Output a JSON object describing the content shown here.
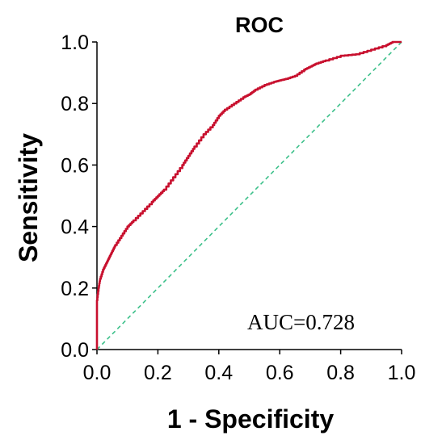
{
  "chart_data": {
    "type": "line",
    "title": "ROC",
    "xlabel": "1 - Specificity",
    "ylabel": "Sensitivity",
    "xlim": [
      0.0,
      1.0
    ],
    "ylim": [
      0.0,
      1.0
    ],
    "xticks": [
      "0.0",
      "0.2",
      "0.4",
      "0.6",
      "0.8",
      "1.0"
    ],
    "yticks": [
      "0.0",
      "0.2",
      "0.4",
      "0.6",
      "0.8",
      "1.0"
    ],
    "annotation": "AUC=0.728",
    "grid": false,
    "colors": {
      "roc": "#c8102e",
      "reference": "#3cc08a"
    },
    "series": [
      {
        "x": [
          0.0,
          0.0,
          0.005,
          0.01,
          0.02,
          0.03,
          0.04,
          0.05,
          0.06,
          0.08,
          0.1,
          0.12,
          0.15,
          0.18,
          0.2,
          0.22,
          0.25,
          0.28,
          0.3,
          0.32,
          0.35,
          0.38,
          0.4,
          0.42,
          0.45,
          0.48,
          0.5,
          0.52,
          0.55,
          0.58,
          0.6,
          0.62,
          0.65,
          0.68,
          0.7,
          0.72,
          0.75,
          0.8,
          0.85,
          0.9,
          0.95,
          0.97,
          1.0
        ],
        "y": [
          0.0,
          0.16,
          0.2,
          0.23,
          0.26,
          0.28,
          0.3,
          0.32,
          0.34,
          0.37,
          0.4,
          0.42,
          0.45,
          0.48,
          0.5,
          0.52,
          0.56,
          0.6,
          0.63,
          0.66,
          0.7,
          0.73,
          0.76,
          0.78,
          0.8,
          0.82,
          0.83,
          0.845,
          0.86,
          0.87,
          0.875,
          0.88,
          0.89,
          0.91,
          0.92,
          0.93,
          0.94,
          0.955,
          0.96,
          0.975,
          0.99,
          1.0,
          1.0
        ]
      },
      {
        "x": [
          0.0,
          1.0
        ],
        "y": [
          0.0,
          1.0
        ]
      }
    ]
  }
}
